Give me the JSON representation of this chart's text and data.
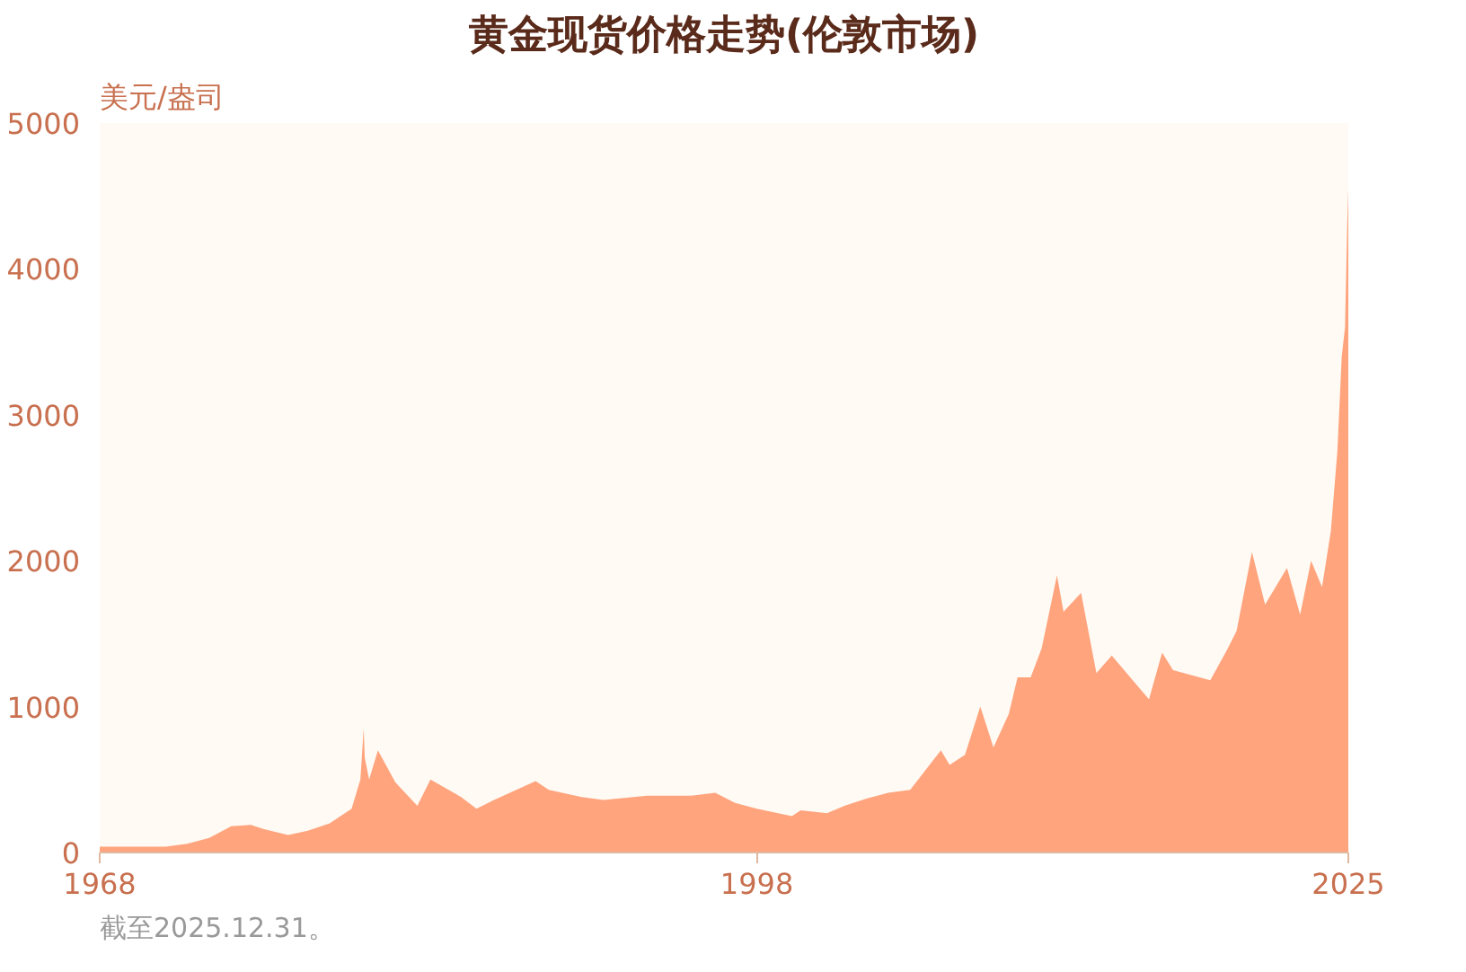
{
  "chart_data": {
    "type": "area",
    "title": "黄金现货价格走势(伦敦市场)",
    "ylabel": "美元/盎司",
    "color": "#ff9a70",
    "x": [
      1968,
      1969,
      1970,
      1971,
      1972,
      1973,
      1974,
      1974.9,
      1975.5,
      1976.6,
      1977.5,
      1978.5,
      1979.5,
      1979.9,
      1980.05,
      1980.1,
      1980.3,
      1980.7,
      1981.5,
      1982.5,
      1983.1,
      1984.5,
      1985.2,
      1986,
      1987.9,
      1988.5,
      1990,
      1991,
      1993,
      1995,
      1996.1,
      1997,
      1998,
      1999.6,
      2000,
      2001.2,
      2002,
      2003,
      2004,
      2005,
      2006.4,
      2006.8,
      2007.5,
      2008.2,
      2008.8,
      2009.5,
      2009.9,
      2010.5,
      2011,
      2011.7,
      2012,
      2012.8,
      2013.5,
      2014.2,
      2015.9,
      2016.5,
      2017,
      2018.7,
      2019.5,
      2019.9,
      2020.6,
      2021.2,
      2022.2,
      2022.8,
      2023.3,
      2023.8,
      2024.2,
      2024.5,
      2024.7,
      2024.85,
      2024.95,
      2025
    ],
    "values": [
      40,
      40,
      40,
      40,
      60,
      100,
      180,
      190,
      160,
      120,
      150,
      200,
      300,
      500,
      850,
      650,
      500,
      700,
      480,
      320,
      500,
      380,
      300,
      360,
      490,
      430,
      380,
      360,
      390,
      390,
      410,
      340,
      300,
      250,
      290,
      270,
      320,
      370,
      410,
      430,
      700,
      600,
      670,
      1000,
      720,
      950,
      1200,
      1200,
      1400,
      1900,
      1650,
      1780,
      1230,
      1350,
      1050,
      1370,
      1250,
      1180,
      1400,
      1520,
      2060,
      1700,
      1950,
      1630,
      2000,
      1820,
      2200,
      2750,
      3400,
      3600,
      4300,
      4550
    ],
    "xlim": [
      1968,
      2025
    ],
    "xticks": [
      1968,
      1998,
      2025
    ],
    "ylim": [
      0,
      5000
    ],
    "yticks": [
      0,
      1000,
      2000,
      3000,
      4000,
      5000
    ],
    "grid": false,
    "annotations": [
      "截至2025.12.31。"
    ]
  }
}
